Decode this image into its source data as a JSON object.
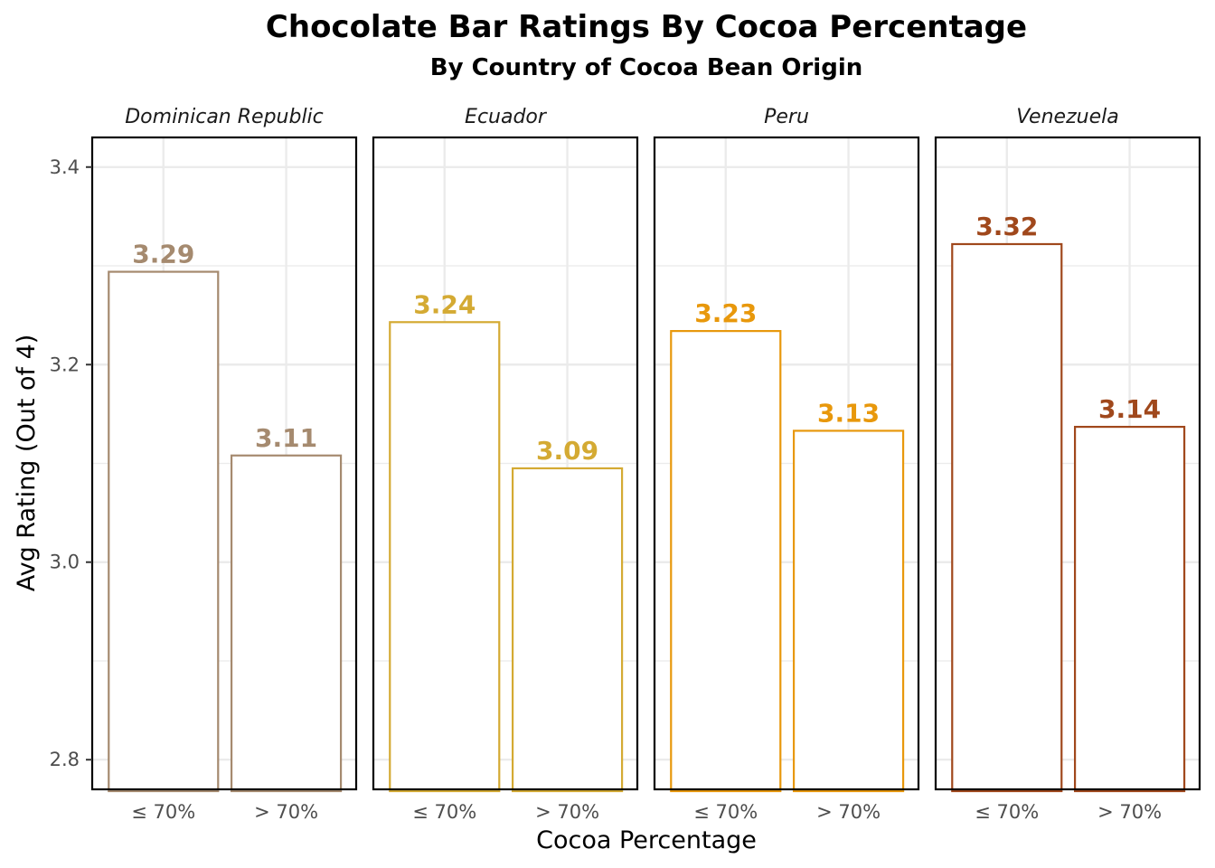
{
  "chart_data": {
    "type": "bar",
    "title": "Chocolate Bar Ratings By Cocoa Percentage",
    "subtitle": "By Country of Cocoa Bean Origin",
    "xlabel": "Cocoa Percentage",
    "ylabel": "Avg Rating (Out of 4)",
    "categories": [
      "≤ 70%",
      "> 70%"
    ],
    "ylim": [
      2.77,
      3.43
    ],
    "yticks": [
      2.8,
      3.0,
      3.2,
      3.4
    ],
    "ytick_labels": [
      "2.8",
      "3.0",
      "3.2",
      "3.4"
    ],
    "grid": true,
    "facets": [
      {
        "name": "Dominican Republic",
        "color": "#a58a6f",
        "values": [
          3.294,
          3.108
        ],
        "labels": [
          "3.29",
          "3.11"
        ]
      },
      {
        "name": "Ecuador",
        "color": "#d4aa33",
        "values": [
          3.243,
          3.095
        ],
        "labels": [
          "3.24",
          "3.09"
        ]
      },
      {
        "name": "Peru",
        "color": "#e8980c",
        "values": [
          3.234,
          3.133
        ],
        "labels": [
          "3.23",
          "3.13"
        ]
      },
      {
        "name": "Venezuela",
        "color": "#a0481c",
        "values": [
          3.322,
          3.137
        ],
        "labels": [
          "3.32",
          "3.14"
        ]
      }
    ]
  }
}
